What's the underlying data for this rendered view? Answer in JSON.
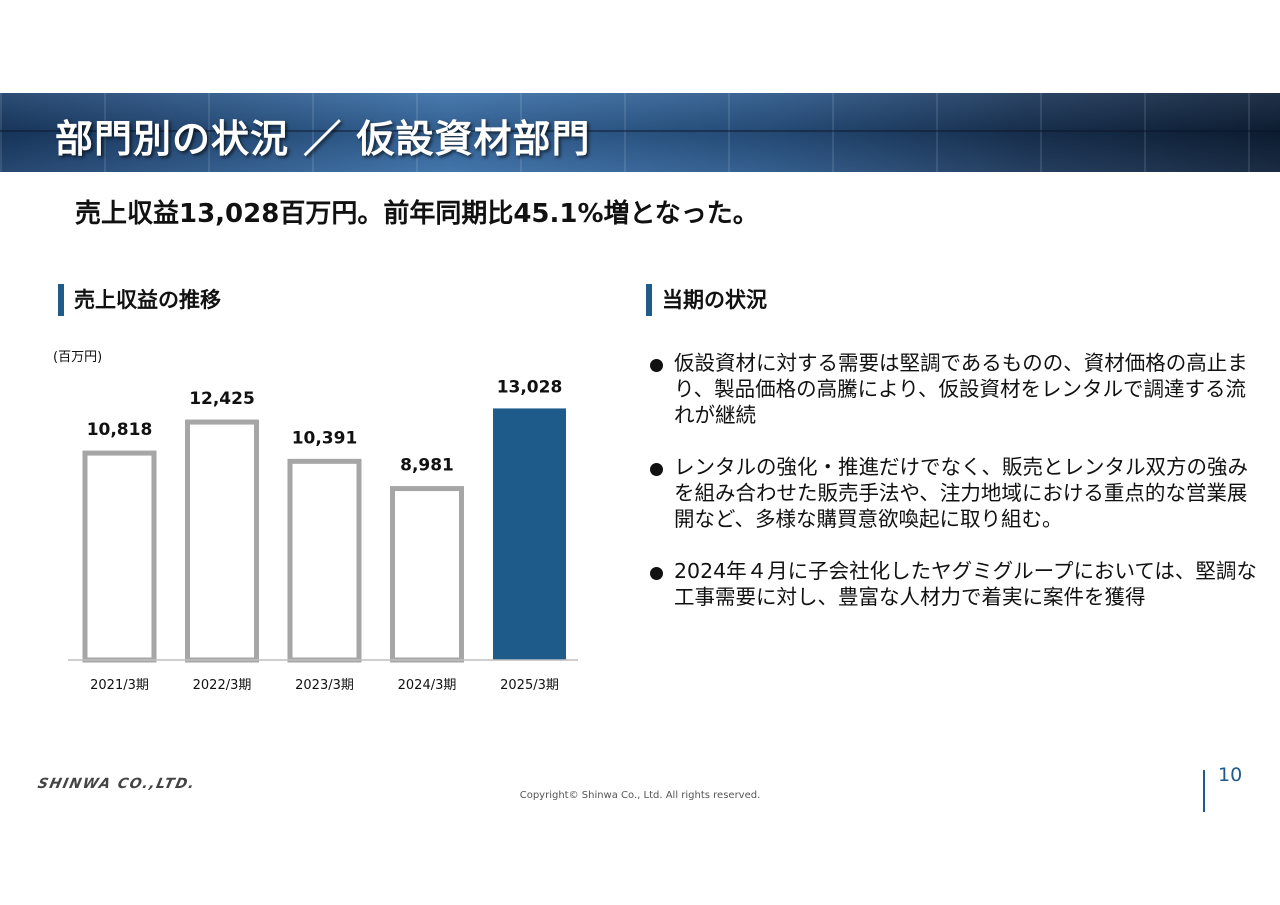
{
  "header": {
    "title": "部門別の状況 ／ 仮設資材部門"
  },
  "headline": "売上収益13,028百万円。前年同期比45.1%増となった。",
  "left_section": {
    "title": "売上収益の推移",
    "unit": "(百万円)"
  },
  "right_section": {
    "title": "当期の状況",
    "bullets": [
      "仮設資材に対する需要は堅調であるものの、資材価格の高止まり、製品価格の高騰により、仮設資材をレンタルで調達する流れが継続",
      "レンタルの強化・推進だけでなく、販売とレンタル双方の強みを組み合わせた販売手法や、注力地域における重点的な営業展開など、多様な購買意欲喚起に取り組む。",
      "2024年４月に子会社化したヤグミグループにおいては、堅調な工事需要に対し、豊富な人材力で着実に案件を獲得"
    ]
  },
  "chart_data": {
    "type": "bar",
    "categories": [
      "2021/3期",
      "2022/3期",
      "2023/3期",
      "2024/3期",
      "2025/3期"
    ],
    "values": [
      10818,
      12425,
      10391,
      8981,
      13028
    ],
    "value_labels": [
      "10,818",
      "12,425",
      "10,391",
      "8,981",
      "13,028"
    ],
    "ylim": [
      0,
      14500
    ],
    "highlight_index": 4,
    "colors": {
      "outline": "#a6a6a6",
      "highlight": "#1e5a8a"
    }
  },
  "footer": {
    "company": "SHINWA CO.,LTD.",
    "copyright": "Copyright© Shinwa Co., Ltd. All rights reserved.",
    "page": "10"
  }
}
